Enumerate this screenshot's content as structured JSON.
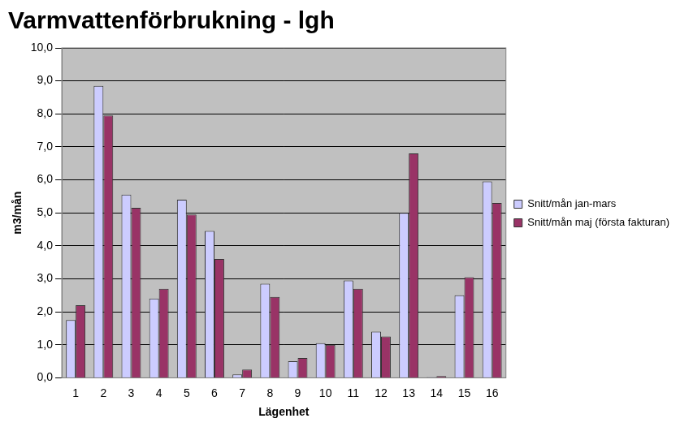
{
  "chart_data": {
    "type": "bar",
    "title": "Varmvattenförbrukning - lgh",
    "x_label": "Lägenhet",
    "y_label": "m3/mån",
    "categories": [
      "1",
      "2",
      "3",
      "4",
      "5",
      "6",
      "7",
      "8",
      "9",
      "10",
      "11",
      "12",
      "13",
      "14",
      "15",
      "16"
    ],
    "series": [
      {
        "name": "Snitt/mån jan-mars",
        "color": "#ccccff",
        "values": [
          1.75,
          8.85,
          5.55,
          2.4,
          5.4,
          4.45,
          0.1,
          2.85,
          0.5,
          1.05,
          2.95,
          1.4,
          5.0,
          0.02,
          2.5,
          5.95
        ]
      },
      {
        "name": "Snitt/mån maj (första fakturan)",
        "color": "#993366",
        "values": [
          2.2,
          7.95,
          5.15,
          2.7,
          4.95,
          3.6,
          0.25,
          2.45,
          0.6,
          1.0,
          2.7,
          1.25,
          6.8,
          0.05,
          3.05,
          5.3
        ]
      }
    ],
    "ylim": [
      0,
      10
    ],
    "yticks": [
      {
        "value": 0,
        "label": "0,0"
      },
      {
        "value": 1,
        "label": "1,0"
      },
      {
        "value": 2,
        "label": "2,0"
      },
      {
        "value": 3,
        "label": "3,0"
      },
      {
        "value": 4,
        "label": "4,0"
      },
      {
        "value": 5,
        "label": "5,0"
      },
      {
        "value": 6,
        "label": "6,0"
      },
      {
        "value": 7,
        "label": "7,0"
      },
      {
        "value": 8,
        "label": "8,0"
      },
      {
        "value": 9,
        "label": "9,0"
      },
      {
        "value": 10,
        "label": "10,0"
      }
    ],
    "grid": true,
    "legend": "right"
  }
}
